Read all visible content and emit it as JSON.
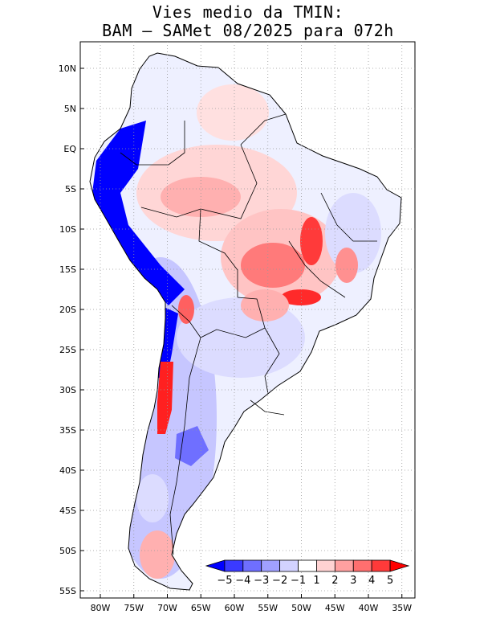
{
  "title": {
    "line1": "Vies medio da TMIN:",
    "line2": "BAM – SAMet 08/2025  para 072h"
  },
  "map": {
    "region": "South America",
    "variable": "Minimum temperature mean bias",
    "lat_labels": [
      "10N",
      "5N",
      "EQ",
      "5S",
      "10S",
      "15S",
      "20S",
      "25S",
      "30S",
      "35S",
      "40S",
      "45S",
      "50S",
      "55S"
    ],
    "lon_labels": [
      "80W",
      "75W",
      "70W",
      "65W",
      "60W",
      "55W",
      "50W",
      "45W",
      "40W",
      "35W"
    ],
    "lat_range": [
      -55.5,
      13.5
    ],
    "lon_range": [
      -83,
      -34.5
    ],
    "gridlines": true
  },
  "colorbar": {
    "labels": [
      "−5",
      "−4",
      "−3",
      "−2",
      "−1",
      "1",
      "2",
      "3",
      "4",
      "5"
    ],
    "colors": [
      "#0000ff",
      "#3a3aff",
      "#6f6fff",
      "#a0a0ff",
      "#d2d2ff",
      "#ffffff",
      "#ffd2d2",
      "#ffa0a0",
      "#ff6f6f",
      "#ff3a3a",
      "#ff0000"
    ]
  }
}
